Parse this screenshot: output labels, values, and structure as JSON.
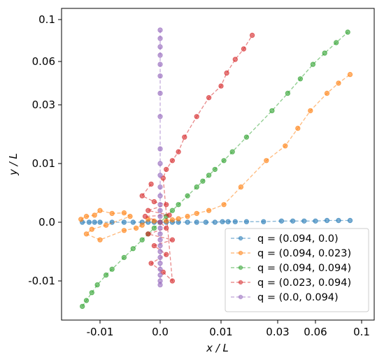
{
  "chart_data": {
    "type": "scatter",
    "title": "",
    "xlabel": "x / L",
    "ylabel": "y / L",
    "xscale": "symlog",
    "yscale": "symlog",
    "xlim": [
      -0.02,
      0.11
    ],
    "ylim": [
      -0.02,
      0.12
    ],
    "grid": false,
    "legend_position": "lower-right",
    "x_ticks": [
      {
        "value": -0.01,
        "label": "-0.01"
      },
      {
        "value": 0.0,
        "label": "0.0"
      },
      {
        "value": 0.01,
        "label": "0.01"
      },
      {
        "value": 0.03,
        "label": "0.03"
      },
      {
        "value": 0.06,
        "label": "0.06"
      },
      {
        "value": 0.1,
        "label": "0.1"
      }
    ],
    "y_ticks": [
      {
        "value": -0.01,
        "label": "-0.01"
      },
      {
        "value": 0.0,
        "label": "0.0"
      },
      {
        "value": 0.01,
        "label": "0.01"
      },
      {
        "value": 0.03,
        "label": "0.03"
      },
      {
        "value": 0.06,
        "label": "0.06"
      },
      {
        "value": 0.1,
        "label": "0.1"
      }
    ],
    "series": [
      {
        "name": "q = (0.094, 0.0)",
        "color": "#1f77b4",
        "points": [
          [
            -0.0165,
            0.0
          ],
          [
            -0.014,
            0.0
          ],
          [
            -0.012,
            0.0
          ],
          [
            -0.01,
            0.0
          ],
          [
            -0.008,
            0.0
          ],
          [
            -0.006,
            0.0
          ],
          [
            -0.0045,
            0.0
          ],
          [
            -0.003,
            0.0
          ],
          [
            -0.002,
            0.0
          ],
          [
            -0.001,
            0.0
          ],
          [
            0.0,
            0.0
          ],
          [
            0.001,
            0.0
          ],
          [
            0.002,
            0.0
          ],
          [
            0.003,
            0.0
          ],
          [
            0.0045,
            0.0
          ],
          [
            0.006,
            0.0
          ],
          [
            0.0075,
            0.0
          ],
          [
            0.009,
            0.0
          ],
          [
            0.0105,
            0.0001
          ],
          [
            0.0125,
            0.0001
          ],
          [
            0.015,
            0.0001
          ],
          [
            0.019,
            0.0001
          ],
          [
            0.025,
            0.0001
          ],
          [
            0.033,
            0.0002
          ],
          [
            0.042,
            0.0002
          ],
          [
            0.051,
            0.0002
          ],
          [
            0.06,
            0.0002
          ],
          [
            0.07,
            0.0003
          ],
          [
            0.08,
            0.0003
          ],
          [
            0.09,
            0.0003
          ]
        ]
      },
      {
        "name": "q = (0.094, 0.023)",
        "color": "#ff7f0e",
        "points": [
          [
            -0.017,
            0.0005
          ],
          [
            -0.015,
            0.001
          ],
          [
            -0.012,
            0.0012
          ],
          [
            -0.01,
            0.002
          ],
          [
            -0.008,
            0.0015
          ],
          [
            -0.006,
            0.0016
          ],
          [
            -0.005,
            0.001
          ],
          [
            -0.009,
            -0.0005
          ],
          [
            -0.013,
            -0.0012
          ],
          [
            -0.015,
            -0.002
          ],
          [
            -0.01,
            -0.003
          ],
          [
            -0.006,
            -0.0014
          ],
          [
            -0.004,
            -0.001
          ],
          [
            -0.003,
            -0.0005
          ],
          [
            -0.002,
            0.0005
          ],
          [
            -0.001,
            0.0002
          ],
          [
            0.0,
            0.0
          ],
          [
            0.001,
            0.0002
          ],
          [
            0.002,
            0.0004
          ],
          [
            0.003,
            0.0006
          ],
          [
            0.0045,
            0.001
          ],
          [
            0.006,
            0.0015
          ],
          [
            0.008,
            0.002
          ],
          [
            0.011,
            0.003
          ],
          [
            0.017,
            0.006
          ],
          [
            0.026,
            0.011
          ],
          [
            0.036,
            0.016
          ],
          [
            0.046,
            0.022
          ],
          [
            0.056,
            0.028
          ],
          [
            0.07,
            0.038
          ],
          [
            0.08,
            0.045
          ],
          [
            0.09,
            0.051
          ]
        ]
      },
      {
        "name": "q = (0.094, 0.094)",
        "color": "#2ca02c",
        "points": [
          [
            -0.0165,
            -0.0165
          ],
          [
            -0.015,
            -0.015
          ],
          [
            -0.013,
            -0.013
          ],
          [
            -0.011,
            -0.011
          ],
          [
            -0.009,
            -0.009
          ],
          [
            -0.008,
            -0.008
          ],
          [
            -0.006,
            -0.006
          ],
          [
            -0.0045,
            -0.0045
          ],
          [
            -0.003,
            -0.003
          ],
          [
            -0.002,
            -0.002
          ],
          [
            -0.001,
            -0.001
          ],
          [
            0.0,
            0.0
          ],
          [
            0.001,
            0.001
          ],
          [
            0.002,
            0.002
          ],
          [
            0.003,
            0.003
          ],
          [
            0.0045,
            0.0045
          ],
          [
            0.006,
            0.006
          ],
          [
            0.007,
            0.007
          ],
          [
            0.008,
            0.008
          ],
          [
            0.009,
            0.009
          ],
          [
            0.011,
            0.011
          ],
          [
            0.014,
            0.014
          ],
          [
            0.019,
            0.019
          ],
          [
            0.028,
            0.028
          ],
          [
            0.038,
            0.038
          ],
          [
            0.048,
            0.048
          ],
          [
            0.058,
            0.058
          ],
          [
            0.068,
            0.068
          ],
          [
            0.078,
            0.078
          ],
          [
            0.088,
            0.088
          ]
        ]
      },
      {
        "name": "q = (0.023, 0.094)",
        "color": "#d62728",
        "points": [
          [
            -0.0015,
            0.0065
          ],
          [
            -0.003,
            0.0045
          ],
          [
            -0.001,
            0.0035
          ],
          [
            0.001,
            0.003
          ],
          [
            -0.002,
            0.002
          ],
          [
            0.0015,
            0.0012
          ],
          [
            -0.0025,
            0.001
          ],
          [
            0.0,
            0.0
          ],
          [
            0.001,
            -0.001
          ],
          [
            -0.002,
            -0.002
          ],
          [
            0.002,
            -0.003
          ],
          [
            -0.001,
            -0.004
          ],
          [
            0.001,
            -0.0055
          ],
          [
            -0.0015,
            -0.007
          ],
          [
            0.0005,
            -0.0085
          ],
          [
            0.002,
            -0.01
          ],
          [
            0.0005,
            0.0075
          ],
          [
            0.001,
            0.009
          ],
          [
            0.002,
            0.011
          ],
          [
            0.003,
            0.014
          ],
          [
            0.004,
            0.019
          ],
          [
            0.006,
            0.026
          ],
          [
            0.008,
            0.035
          ],
          [
            0.01,
            0.043
          ],
          [
            0.012,
            0.052
          ],
          [
            0.015,
            0.062
          ],
          [
            0.018,
            0.072
          ],
          [
            0.021,
            0.085
          ]
        ]
      },
      {
        "name": "q = (0.0, 0.094)",
        "color": "#9467bd",
        "points": [
          [
            0.0,
            -0.011
          ],
          [
            0.0,
            -0.01
          ],
          [
            0.0,
            -0.009
          ],
          [
            0.0,
            -0.008
          ],
          [
            0.0,
            -0.007
          ],
          [
            0.0,
            -0.006
          ],
          [
            0.0,
            -0.005
          ],
          [
            0.0,
            -0.004
          ],
          [
            0.0,
            -0.003
          ],
          [
            0.0,
            -0.002
          ],
          [
            0.0,
            -0.001
          ],
          [
            0.0,
            0.0
          ],
          [
            0.0,
            0.001
          ],
          [
            0.0,
            0.002
          ],
          [
            0.0,
            0.003
          ],
          [
            0.0,
            0.0045
          ],
          [
            0.0,
            0.006
          ],
          [
            0.0,
            0.008
          ],
          [
            0.0,
            0.01
          ],
          [
            0.0,
            0.015
          ],
          [
            0.0,
            0.026
          ],
          [
            0.0,
            0.038
          ],
          [
            0.0,
            0.05
          ],
          [
            0.0,
            0.058
          ],
          [
            0.0,
            0.066
          ],
          [
            0.0,
            0.074
          ],
          [
            0.0,
            0.082
          ],
          [
            0.0,
            0.09
          ]
        ]
      }
    ]
  }
}
